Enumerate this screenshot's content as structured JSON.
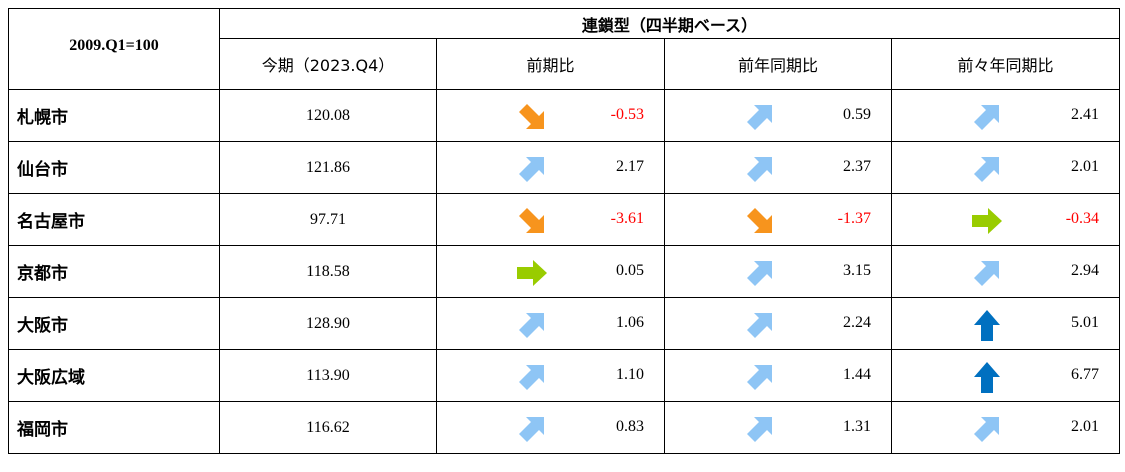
{
  "header": {
    "base_label": "2009.Q1=100",
    "group_label": "連鎖型（四半期ベース）",
    "col_current": "今期（2023.Q4）",
    "col_qoq": "前期比",
    "col_yoy": "前年同期比",
    "col_2y": "前々年同期比"
  },
  "colors": {
    "up_strong": "#0070c0",
    "up": "#8ec5f5",
    "flat": "#99cc00",
    "down": "#f7941d",
    "negative_text": "#ff0000"
  },
  "rows": [
    {
      "city": "札幌市",
      "current": "120.08",
      "qoq": {
        "value": "-0.53",
        "arrow": "down"
      },
      "yoy": {
        "value": "0.59",
        "arrow": "up"
      },
      "y2": {
        "value": "2.41",
        "arrow": "up"
      }
    },
    {
      "city": "仙台市",
      "current": "121.86",
      "qoq": {
        "value": "2.17",
        "arrow": "up"
      },
      "yoy": {
        "value": "2.37",
        "arrow": "up"
      },
      "y2": {
        "value": "2.01",
        "arrow": "up"
      }
    },
    {
      "city": "名古屋市",
      "current": "97.71",
      "qoq": {
        "value": "-3.61",
        "arrow": "down"
      },
      "yoy": {
        "value": "-1.37",
        "arrow": "down"
      },
      "y2": {
        "value": "-0.34",
        "arrow": "flat"
      }
    },
    {
      "city": "京都市",
      "current": "118.58",
      "qoq": {
        "value": "0.05",
        "arrow": "flat"
      },
      "yoy": {
        "value": "3.15",
        "arrow": "up"
      },
      "y2": {
        "value": "2.94",
        "arrow": "up"
      }
    },
    {
      "city": "大阪市",
      "current": "128.90",
      "qoq": {
        "value": "1.06",
        "arrow": "up"
      },
      "yoy": {
        "value": "2.24",
        "arrow": "up"
      },
      "y2": {
        "value": "5.01",
        "arrow": "up-strong"
      }
    },
    {
      "city": "大阪広域",
      "current": "113.90",
      "qoq": {
        "value": "1.10",
        "arrow": "up"
      },
      "yoy": {
        "value": "1.44",
        "arrow": "up"
      },
      "y2": {
        "value": "6.77",
        "arrow": "up-strong"
      }
    },
    {
      "city": "福岡市",
      "current": "116.62",
      "qoq": {
        "value": "0.83",
        "arrow": "up"
      },
      "yoy": {
        "value": "1.31",
        "arrow": "up"
      },
      "y2": {
        "value": "2.01",
        "arrow": "up"
      }
    }
  ]
}
